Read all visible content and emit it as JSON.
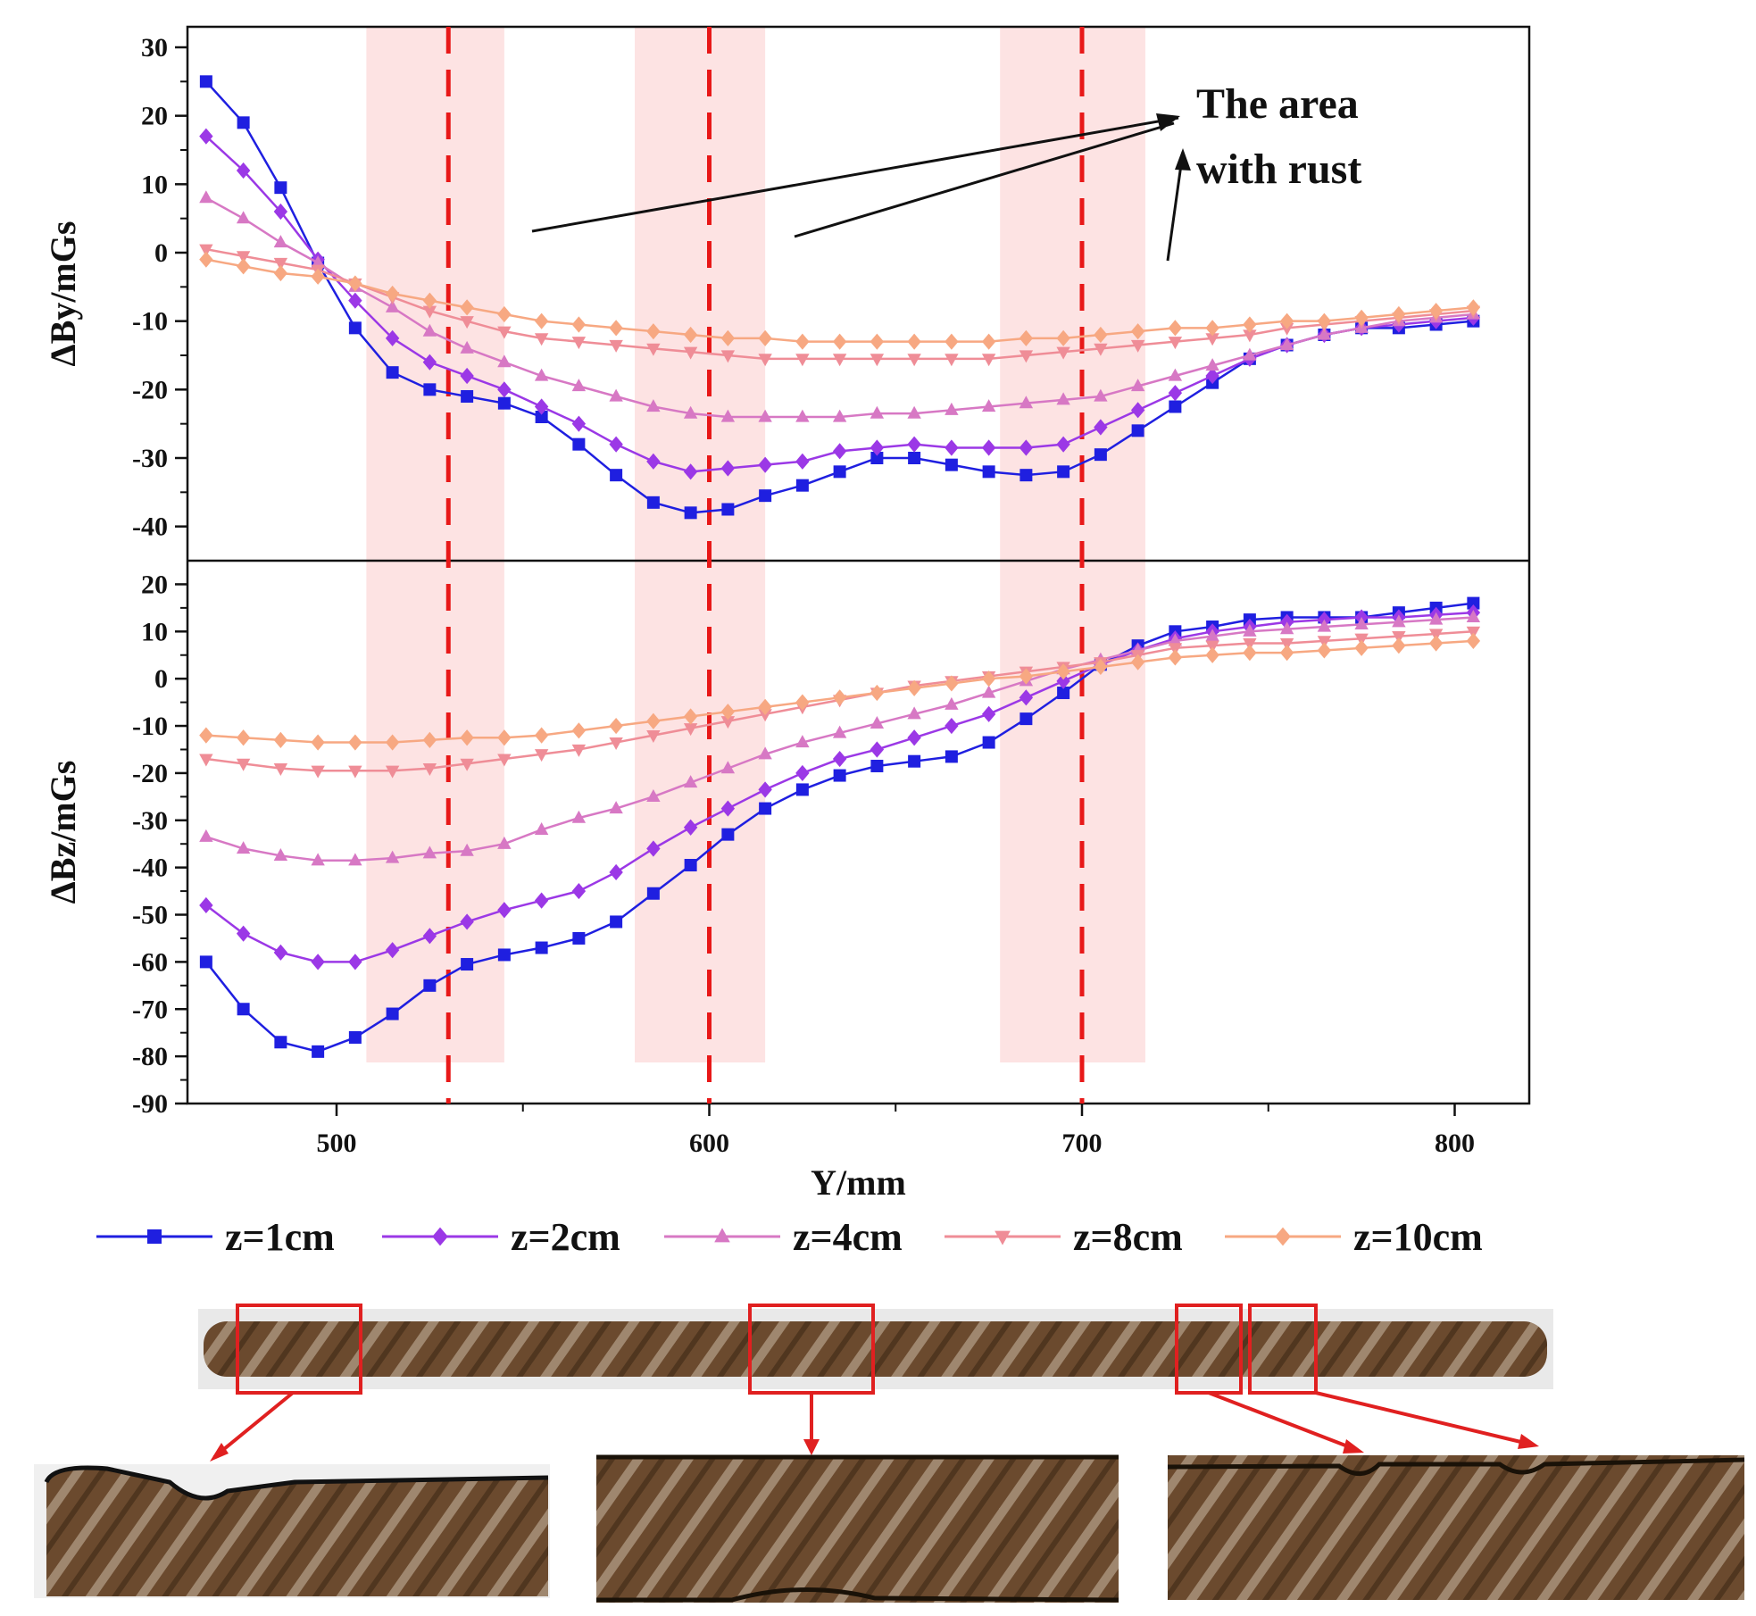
{
  "chart_data": {
    "type": "line",
    "xlabel": "Y/mm",
    "xlim": [
      460,
      820
    ],
    "x_ticks": [
      "500",
      "600",
      "700",
      "800"
    ],
    "x": [
      465,
      475,
      485,
      495,
      505,
      515,
      525,
      535,
      545,
      555,
      565,
      575,
      585,
      595,
      605,
      615,
      625,
      635,
      645,
      655,
      665,
      675,
      685,
      695,
      705,
      715,
      725,
      735,
      745,
      755,
      765,
      775,
      785,
      795,
      805
    ],
    "rust_regions": [
      [
        508,
        545
      ],
      [
        580,
        615
      ],
      [
        678,
        717
      ]
    ],
    "rust_centers": [
      530,
      600,
      700
    ],
    "annotation": {
      "line1": "The area",
      "line2": "with rust"
    },
    "legend": [
      "z=1cm",
      "z=2cm",
      "z=4cm",
      "z=8cm",
      "z=10cm"
    ],
    "colors": [
      "#1f1fe0",
      "#9b38e6",
      "#d778c4",
      "#ef8d97",
      "#f7a882"
    ],
    "markers": [
      "square",
      "diamond",
      "triangle-up",
      "triangle-down",
      "diamond"
    ],
    "panels": [
      {
        "ylabel": "ΔBy/mGs",
        "ylim": [
          -45,
          33
        ],
        "y_ticks": [
          "30",
          "20",
          "10",
          "0",
          "-10",
          "-20",
          "-30",
          "-40"
        ],
        "series": [
          {
            "name": "z=1cm",
            "values": [
              25,
              19,
              9.5,
              -1.5,
              -11,
              -17.5,
              -20,
              -21,
              -22,
              -24,
              -28,
              -32.5,
              -36.5,
              -38,
              -37.5,
              -35.5,
              -34,
              -32,
              -30,
              -30,
              -31,
              -32,
              -32.5,
              -32,
              -29.5,
              -26,
              -22.5,
              -19,
              -15.5,
              -13.5,
              -12,
              -11,
              -11,
              -10.5,
              -10
            ]
          },
          {
            "name": "z=2cm",
            "values": [
              17,
              12,
              6,
              -1,
              -7,
              -12.5,
              -16,
              -18,
              -20,
              -22.5,
              -25,
              -28,
              -30.5,
              -32,
              -31.5,
              -31,
              -30.5,
              -29,
              -28.5,
              -28,
              -28.5,
              -28.5,
              -28.5,
              -28,
              -25.5,
              -23,
              -20.5,
              -18,
              -15.5,
              -13.5,
              -12,
              -11,
              -10.5,
              -10,
              -9.5
            ]
          },
          {
            "name": "z=4cm",
            "values": [
              8,
              5,
              1.5,
              -1.5,
              -5,
              -8,
              -11.5,
              -14,
              -16,
              -18,
              -19.5,
              -21,
              -22.5,
              -23.5,
              -24,
              -24,
              -24,
              -24,
              -23.5,
              -23.5,
              -23,
              -22.5,
              -22,
              -21.5,
              -21,
              -19.5,
              -18,
              -16.5,
              -15,
              -13.5,
              -12,
              -11,
              -10,
              -9.5,
              -9
            ]
          },
          {
            "name": "z=8cm",
            "values": [
              0.5,
              -0.5,
              -1.5,
              -2.5,
              -4.5,
              -6.5,
              -8.5,
              -10,
              -11.5,
              -12.5,
              -13,
              -13.5,
              -14,
              -14.5,
              -15,
              -15.5,
              -15.5,
              -15.5,
              -15.5,
              -15.5,
              -15.5,
              -15.5,
              -15,
              -14.5,
              -14,
              -13.5,
              -13,
              -12.5,
              -12,
              -11,
              -10.5,
              -10,
              -9.5,
              -9,
              -8.5
            ]
          },
          {
            "name": "z=10cm",
            "values": [
              -1,
              -2,
              -3,
              -3.5,
              -4.5,
              -6,
              -7,
              -8,
              -9,
              -10,
              -10.5,
              -11,
              -11.5,
              -12,
              -12.5,
              -12.5,
              -13,
              -13,
              -13,
              -13,
              -13,
              -13,
              -12.5,
              -12.5,
              -12,
              -11.5,
              -11,
              -11,
              -10.5,
              -10,
              -10,
              -9.5,
              -9,
              -8.5,
              -8
            ]
          }
        ]
      },
      {
        "ylabel": "ΔBz/mGs",
        "ylim": [
          -90,
          25
        ],
        "y_ticks": [
          "20",
          "10",
          "0",
          "-10",
          "-20",
          "-30",
          "-40",
          "-50",
          "-60",
          "-70",
          "-80",
          "-90"
        ],
        "series": [
          {
            "name": "z=1cm",
            "values": [
              -60,
              -70,
              -77,
              -79,
              -76,
              -71,
              -65,
              -60.5,
              -58.5,
              -57,
              -55,
              -51.5,
              -45.5,
              -39.5,
              -33,
              -27.5,
              -23.5,
              -20.5,
              -18.5,
              -17.5,
              -16.5,
              -13.5,
              -8.5,
              -3,
              3,
              7,
              10,
              11,
              12.5,
              13,
              13,
              13,
              14,
              15,
              16
            ]
          },
          {
            "name": "z=2cm",
            "values": [
              -48,
              -54,
              -58,
              -60,
              -60,
              -57.5,
              -54.5,
              -51.5,
              -49,
              -47,
              -45,
              -41,
              -36,
              -31.5,
              -27.5,
              -23.5,
              -20,
              -17,
              -15,
              -12.5,
              -10,
              -7.5,
              -4,
              -0.5,
              3,
              6,
              8.5,
              10,
              11,
              12,
              12.5,
              13,
              13,
              13.5,
              14
            ]
          },
          {
            "name": "z=4cm",
            "values": [
              -33.5,
              -36,
              -37.5,
              -38.5,
              -38.5,
              -38,
              -37,
              -36.5,
              -35,
              -32,
              -29.5,
              -27.5,
              -25,
              -22,
              -19,
              -16,
              -13.5,
              -11.5,
              -9.5,
              -7.5,
              -5.5,
              -3,
              -0.5,
              2,
              4,
              6,
              8,
              9,
              10,
              10.5,
              11,
              11.5,
              12,
              12.5,
              13
            ]
          },
          {
            "name": "z=8cm",
            "values": [
              -17,
              -18,
              -19,
              -19.5,
              -19.5,
              -19.5,
              -19,
              -18,
              -17,
              -16,
              -15,
              -13.5,
              -12,
              -10.5,
              -9,
              -7.5,
              -6,
              -4.5,
              -3,
              -1.5,
              -0.5,
              0.5,
              1.5,
              2.5,
              3.5,
              5,
              6.5,
              7,
              7.5,
              7.5,
              8,
              8.5,
              9,
              9.5,
              10
            ]
          },
          {
            "name": "z=10cm",
            "values": [
              -12,
              -12.5,
              -13,
              -13.5,
              -13.5,
              -13.5,
              -13,
              -12.5,
              -12.5,
              -12,
              -11,
              -10,
              -9,
              -8,
              -7,
              -6,
              -5,
              -4,
              -3,
              -2,
              -1,
              0,
              0.5,
              1.5,
              2.5,
              3.5,
              4.5,
              5,
              5.5,
              5.5,
              6,
              6.5,
              7,
              7.5,
              8
            ]
          }
        ]
      }
    ]
  },
  "photo": {
    "bar_color": "#6b4a2e",
    "rust_color": "#8a5a33",
    "highlight_color": "#e02020",
    "insets": [
      "left-end-rust",
      "middle-rust",
      "right-rust-notches"
    ]
  }
}
